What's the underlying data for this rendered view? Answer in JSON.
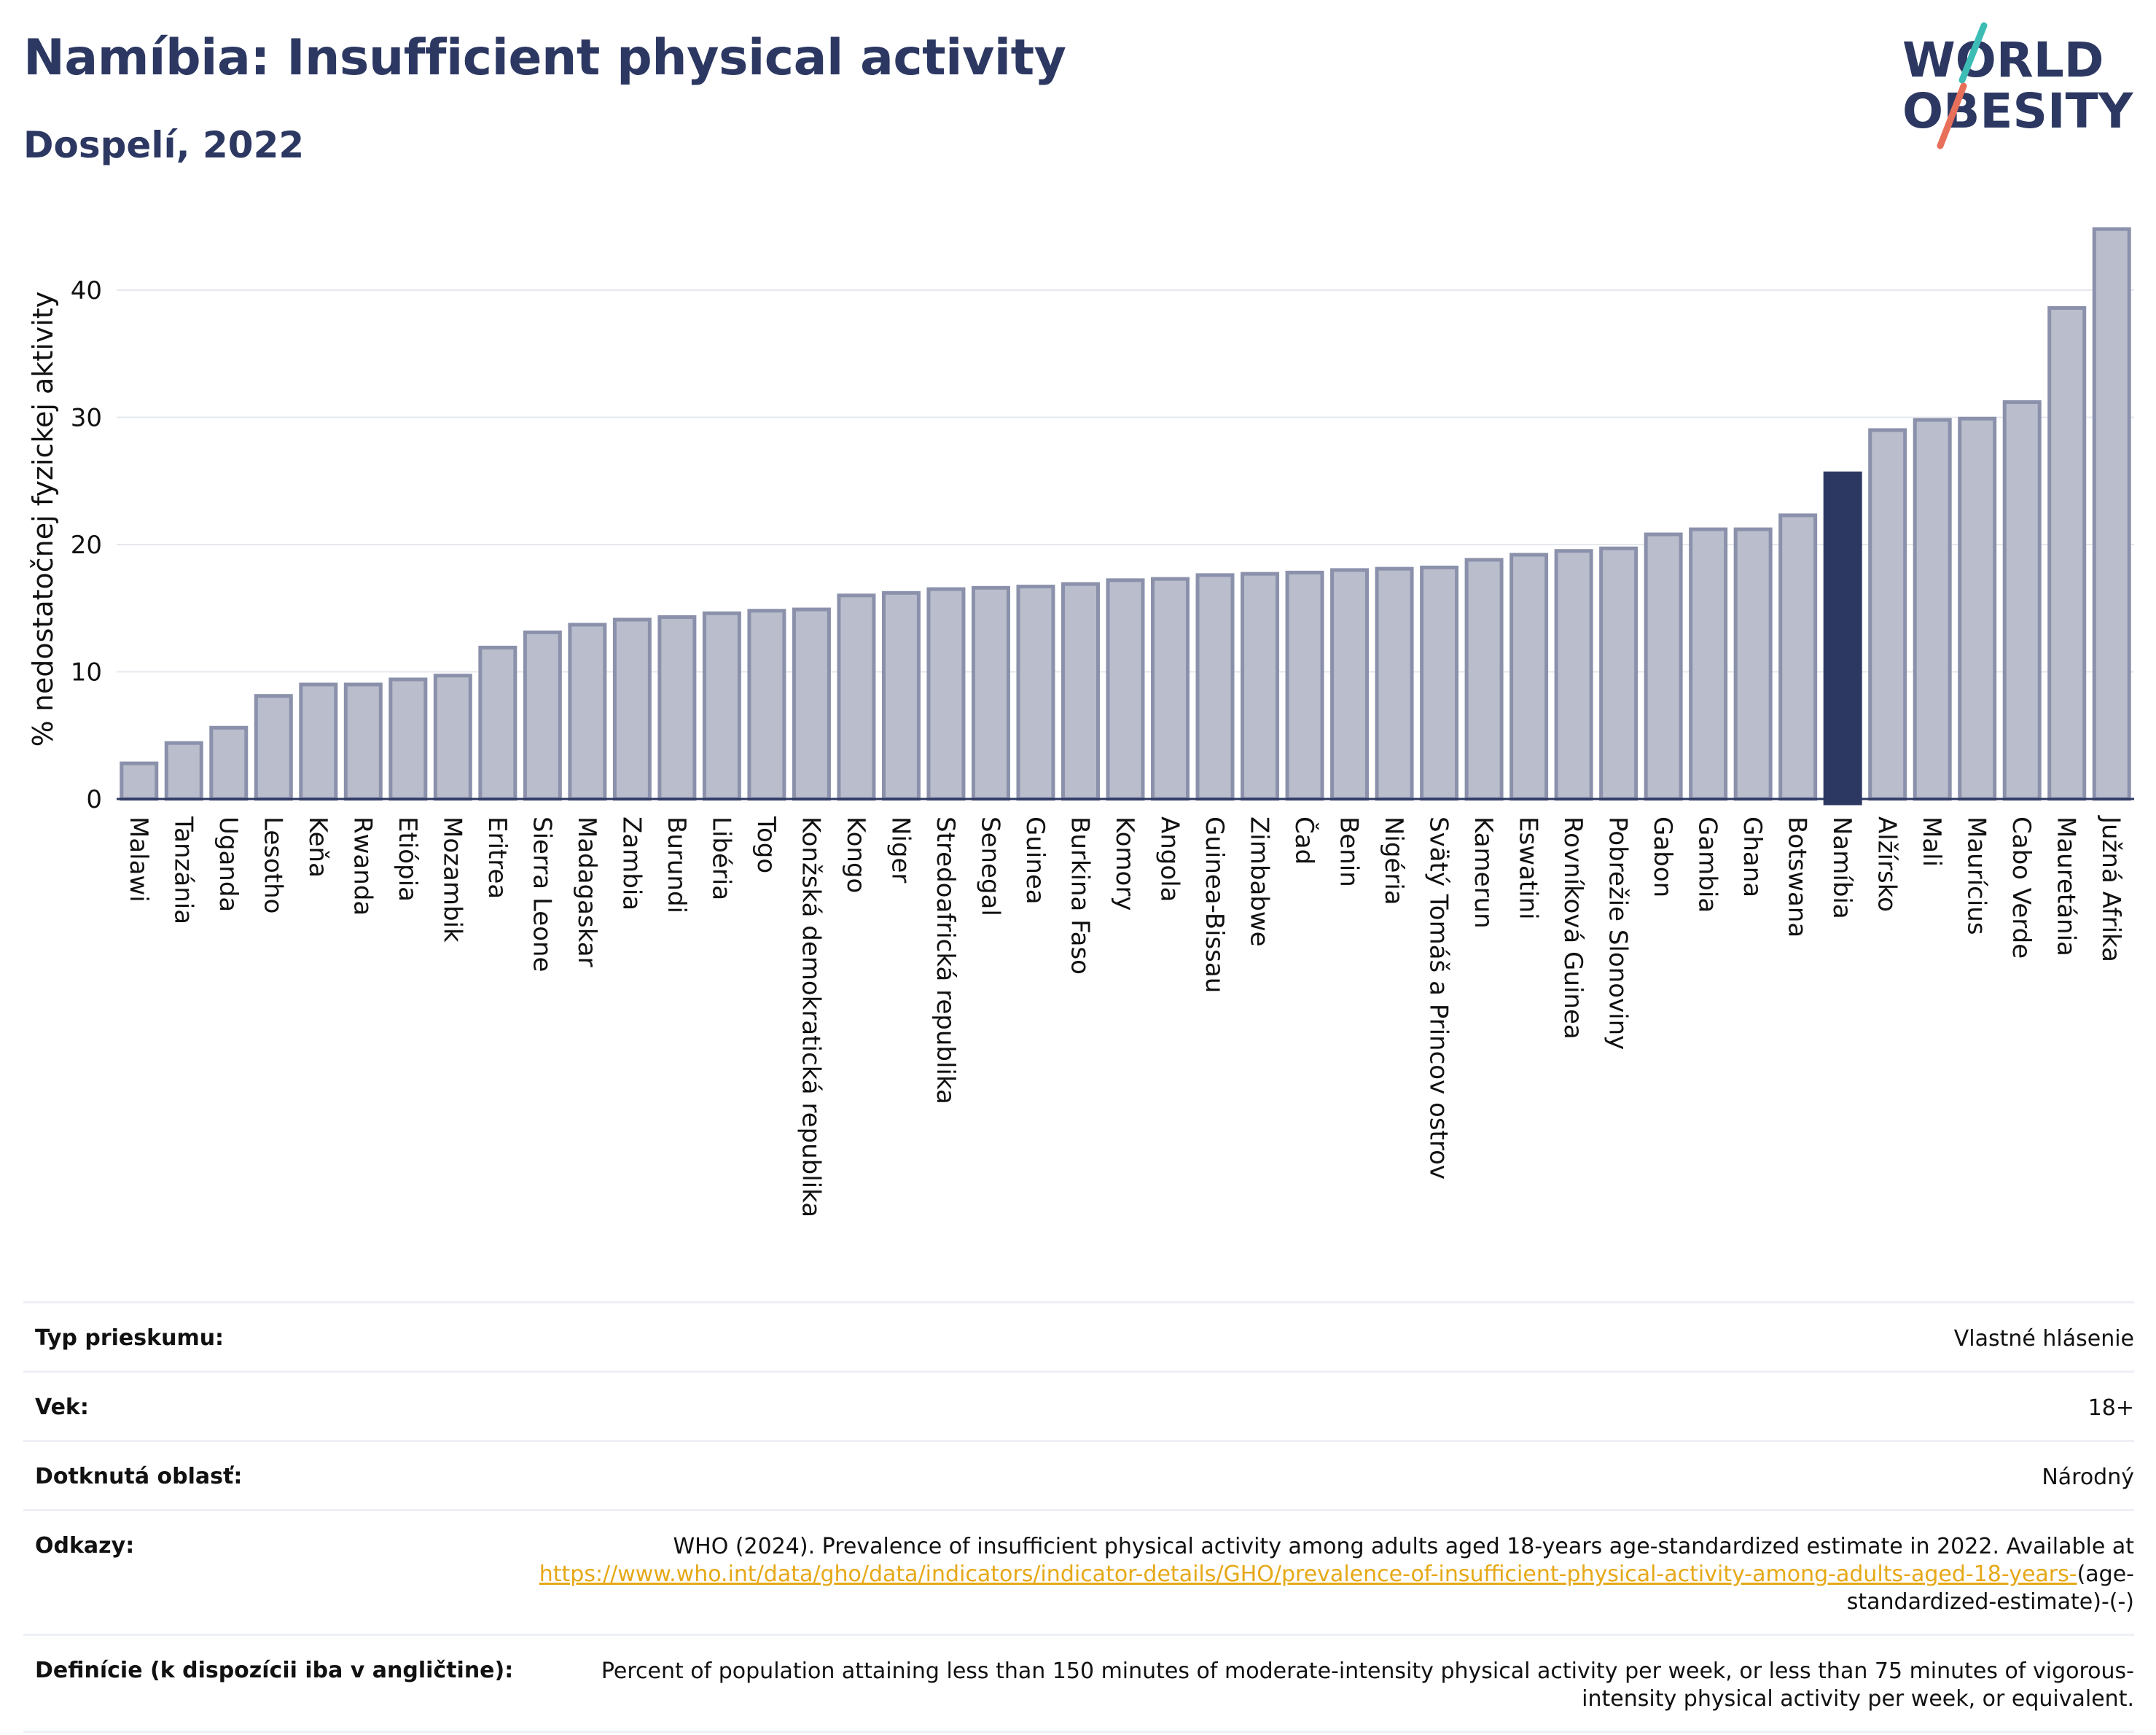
{
  "header": {
    "title": "Namíbia: Insufficient physical activity",
    "subtitle": "Dospelí, 2022",
    "logo_line1": "WORLD",
    "logo_line2": "OBESITY"
  },
  "chart_data": {
    "type": "bar",
    "ylabel": "% nedostatočnej fyzickej aktivity",
    "xlabel": "",
    "ylim": [
      0,
      45
    ],
    "yticks": [
      0,
      10,
      20,
      30,
      40
    ],
    "grid": true,
    "highlight": "Namíbia",
    "colors": {
      "bar": "#b9bdcc",
      "bar_edge": "#8b91ab",
      "highlight": "#2c3862",
      "grid": "#e6e8ef",
      "axis": "#2c3862"
    },
    "categories": [
      "Malawi",
      "Tanzánia",
      "Uganda",
      "Lesotho",
      "Keňa",
      "Rwanda",
      "Etiópia",
      "Mozambik",
      "Eritrea",
      "Sierra Leone",
      "Madagaskar",
      "Zambia",
      "Burundi",
      "Libéria",
      "Togo",
      "Konžská demokratická republika",
      "Kongo",
      "Niger",
      "Stredoafrická republika",
      "Senegal",
      "Guinea",
      "Burkina Faso",
      "Komory",
      "Angola",
      "Guinea-Bissau",
      "Zimbabwe",
      "Čad",
      "Benin",
      "Nigéria",
      "Svätý Tomáš a Princov ostrov",
      "Kamerun",
      "Eswatini",
      "Rovníková Guinea",
      "Pobrežie Slonoviny",
      "Gabon",
      "Gambia",
      "Ghana",
      "Botswana",
      "Namíbia",
      "Alžírsko",
      "Mali",
      "Maurícius",
      "Cabo Verde",
      "Mauretánia",
      "Južná Afrika"
    ],
    "values": [
      2.8,
      4.4,
      5.6,
      8.1,
      9.0,
      9.0,
      9.4,
      9.7,
      11.9,
      13.1,
      13.7,
      14.1,
      14.3,
      14.6,
      14.8,
      14.9,
      16.0,
      16.2,
      16.5,
      16.6,
      16.7,
      16.9,
      17.2,
      17.3,
      17.6,
      17.7,
      17.8,
      18.0,
      18.1,
      18.2,
      18.8,
      19.2,
      19.5,
      19.7,
      20.8,
      21.2,
      21.2,
      22.3,
      25.6,
      29.0,
      29.8,
      29.9,
      31.2,
      38.6,
      44.8
    ]
  },
  "info": {
    "survey_label": "Typ prieskumu:",
    "survey_value": "Vlastné hlásenie",
    "age_label": "Vek:",
    "age_value": "18+",
    "area_label": "Dotknutá oblasť:",
    "area_value": "Národný",
    "refs_label": "Odkazy:",
    "refs_text": "WHO (2024). Prevalence of insufficient physical activity among adults aged 18-years age-standardized estimate in 2022. Available at",
    "refs_link": "https://www.who.int/data/gho/data/indicators/indicator-details/GHO/prevalence-of-insufficient-physical-activity-among-adults-aged-18-years-",
    "refs_suffix": "(age-standardized-estimate)-(-)",
    "def_label": "Definície (k dispozícii iba v angličtine):",
    "def_value": "Percent of population attaining less than 150 minutes of moderate-intensity physical activity per week, or less than 75 minutes of vigorous-intensity physical activity per week, or equivalent."
  }
}
